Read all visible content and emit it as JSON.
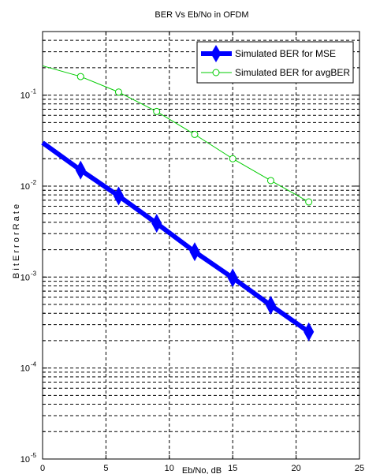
{
  "chart_data": {
    "type": "line",
    "title": "BER Vs Eb/No in OFDM",
    "xlabel": "Eb/No, dB",
    "ylabel": "B i t  E r r o r  R a t e",
    "xlim": [
      0,
      25
    ],
    "ylim": [
      1e-05,
      0.5
    ],
    "yscale": "log",
    "grid": true,
    "legend_position": "top-right",
    "x_ticks": [
      "0",
      "5",
      "10",
      "15",
      "20",
      "25"
    ],
    "y_ticks": [
      {
        "value": 1e-05,
        "exp": "-5"
      },
      {
        "value": 0.0001,
        "exp": "-4"
      },
      {
        "value": 0.001,
        "exp": "-3"
      },
      {
        "value": 0.01,
        "exp": "-2"
      },
      {
        "value": 0.1,
        "exp": "-1"
      }
    ],
    "y_tick_base": "10",
    "series": [
      {
        "name": "Simulated BER for MSE",
        "color": "#0000ff",
        "marker": "diamond",
        "x": [
          0,
          3,
          6,
          9,
          12,
          15,
          18,
          21
        ],
        "y": [
          0.03,
          0.015,
          0.0078,
          0.0039,
          0.0019,
          0.00098,
          0.00049,
          0.00025
        ]
      },
      {
        "name": "Simulated BER for avgBER",
        "color": "#00cc00",
        "marker": "circle",
        "x": [
          0,
          3,
          6,
          9,
          12,
          15,
          18,
          21
        ],
        "y": [
          0.21,
          0.16,
          0.108,
          0.066,
          0.037,
          0.02,
          0.0115,
          0.0067
        ]
      }
    ]
  }
}
